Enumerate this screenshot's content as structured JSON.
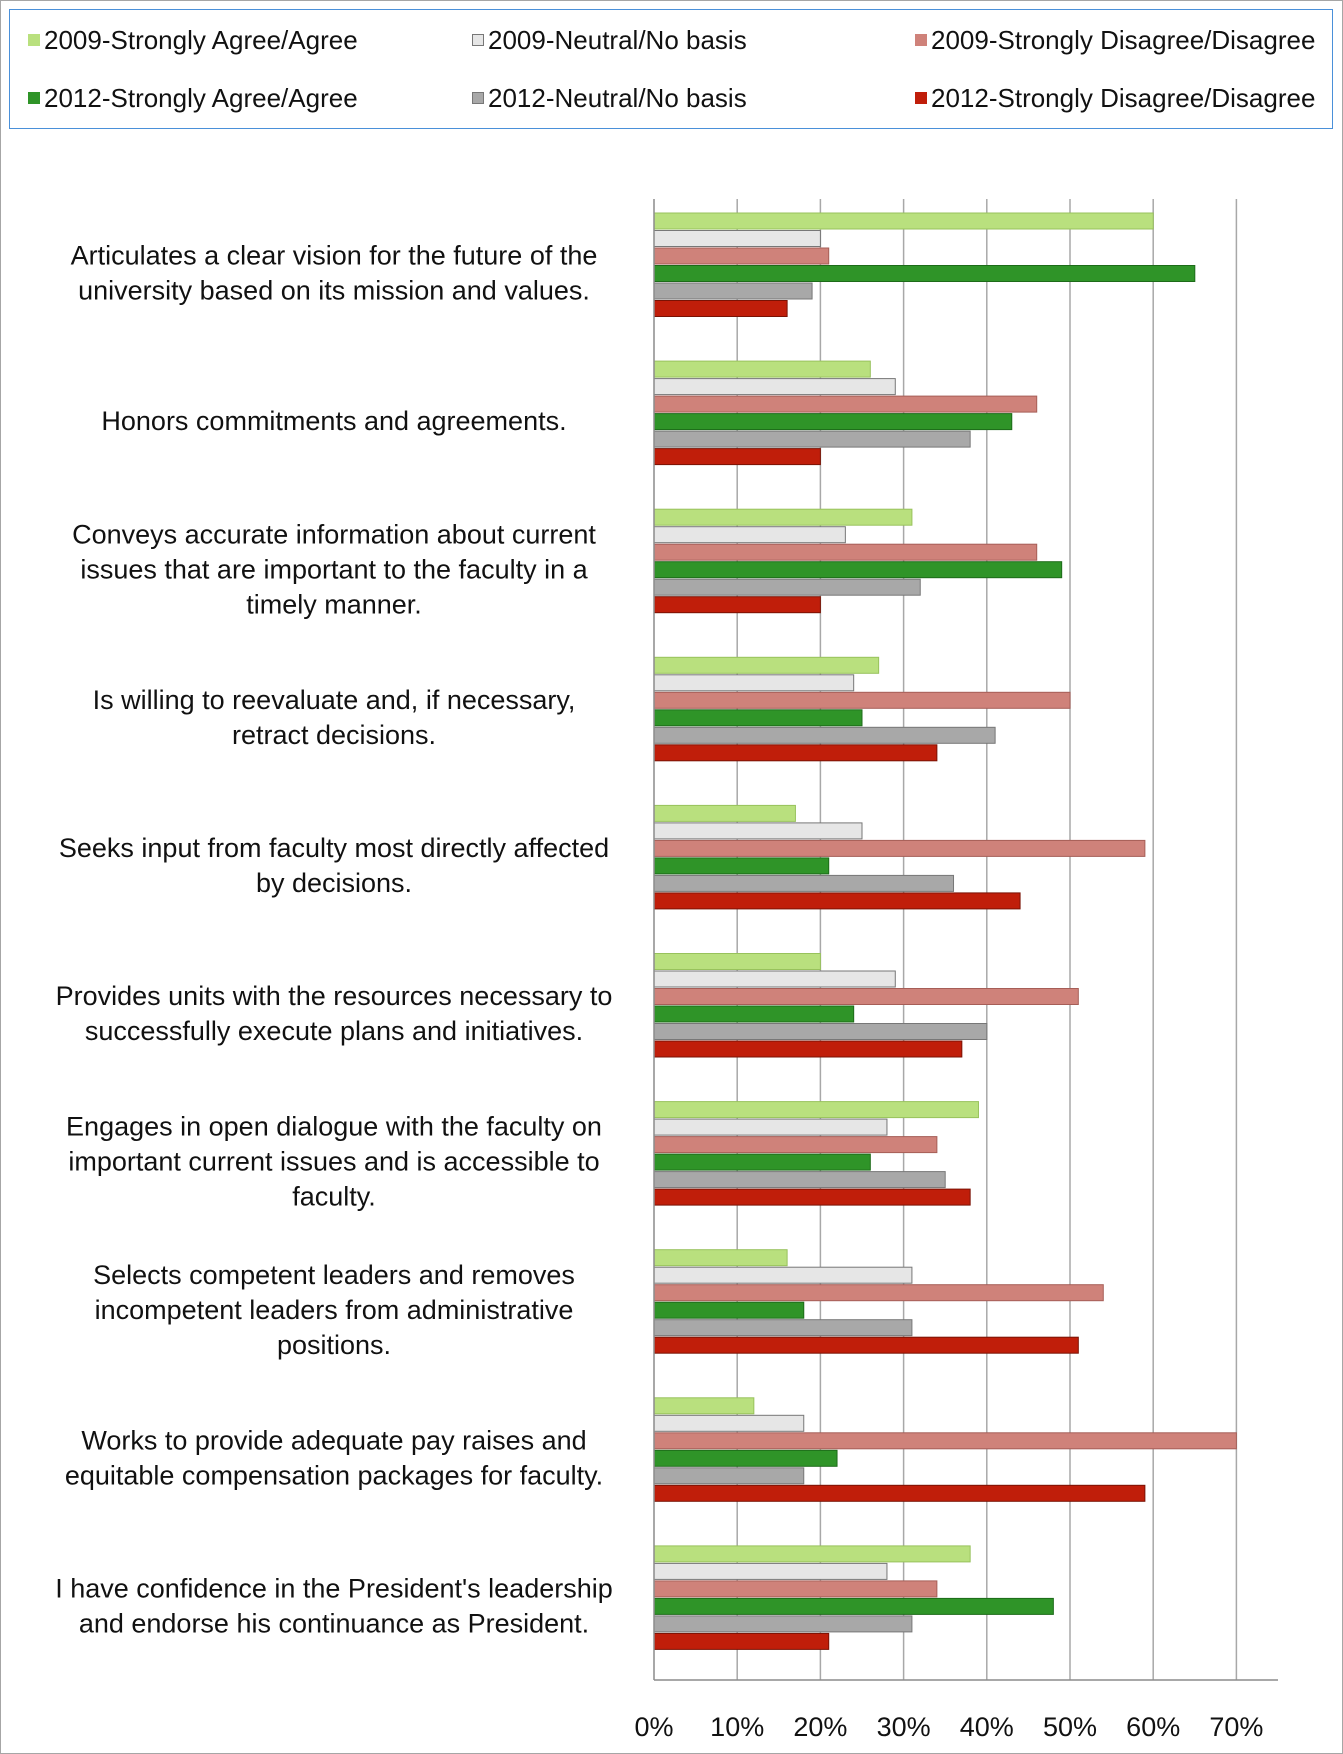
{
  "chart_data": {
    "type": "bar",
    "orientation": "horizontal",
    "categories": [
      [
        "Articulates a clear vision for the future of the",
        "university based on its mission and values."
      ],
      [
        "Honors commitments and agreements."
      ],
      [
        "Conveys accurate information about current",
        "issues that are important to the faculty in a",
        "timely manner."
      ],
      [
        "Is willing to reevaluate and, if necessary,",
        "retract decisions."
      ],
      [
        "Seeks input from faculty most directly affected",
        "by decisions."
      ],
      [
        "Provides units with the resources necessary to",
        "successfully execute plans and initiatives."
      ],
      [
        "Engages in open dialogue with the faculty on",
        "important current issues and is accessible to",
        "faculty."
      ],
      [
        "Selects competent leaders and removes",
        "incompetent leaders from administrative",
        "positions."
      ],
      [
        "Works to provide adequate pay raises and",
        "equitable compensation packages for faculty."
      ],
      [
        "I have confidence in the President's leadership",
        "and endorse his continuance as President."
      ]
    ],
    "series": [
      {
        "name": "2009-Strongly Agree/Agree",
        "color": "#b9e07e",
        "values": [
          60,
          26,
          31,
          27,
          17,
          20,
          39,
          16,
          12,
          38
        ]
      },
      {
        "name": "2009-Neutral/No basis",
        "color": "#e6e6e6",
        "values": [
          20,
          29,
          23,
          24,
          25,
          29,
          28,
          31,
          18,
          28
        ]
      },
      {
        "name": "2009-Strongly Disagree/Disagree",
        "color": "#cf827a",
        "values": [
          21,
          46,
          46,
          50,
          59,
          51,
          34,
          54,
          70,
          34
        ]
      },
      {
        "name": "2012-Strongly Agree/Agree",
        "color": "#2f9428",
        "values": [
          65,
          43,
          49,
          25,
          21,
          24,
          26,
          18,
          22,
          48
        ]
      },
      {
        "name": "2012-Neutral/No basis",
        "color": "#a8a8a8",
        "values": [
          19,
          38,
          32,
          41,
          36,
          40,
          35,
          31,
          18,
          31
        ]
      },
      {
        "name": "2012-Strongly Disagree/Disagree",
        "color": "#c01e0a",
        "values": [
          16,
          20,
          20,
          34,
          44,
          37,
          38,
          51,
          59,
          21
        ]
      }
    ],
    "xlim": [
      0,
      75
    ],
    "xticks": [
      "0%",
      "10%",
      "20%",
      "30%",
      "40%",
      "50%",
      "60%",
      "70%"
    ],
    "grid": true,
    "legend_position": "top"
  }
}
